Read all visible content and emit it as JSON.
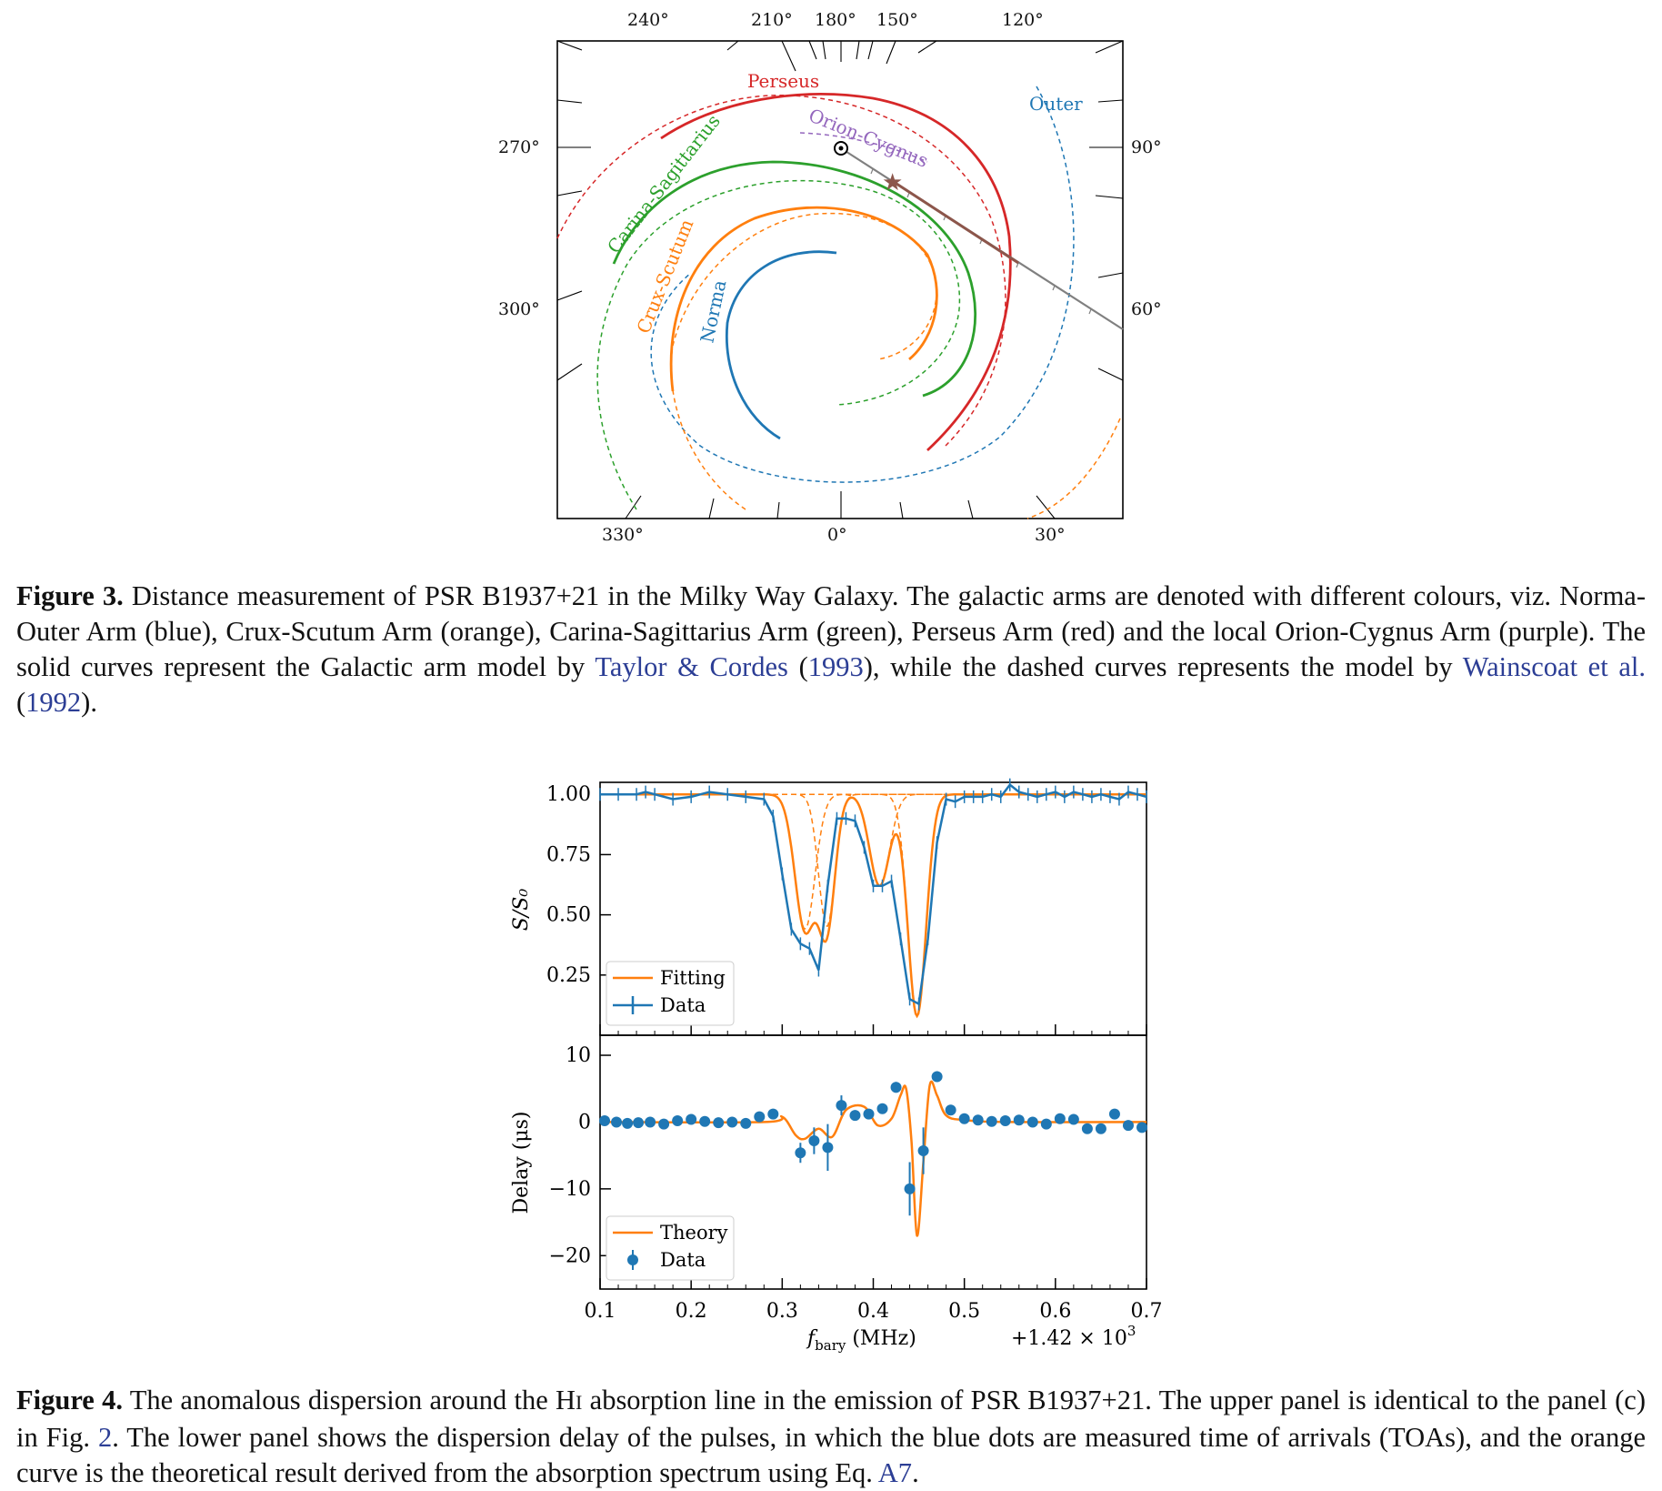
{
  "figure3": {
    "caption_label": "Figure 3.",
    "caption_text_1": " Distance measurement of PSR B1937+21 in the Milky Way Galaxy. The galactic arms are denoted with different colours, viz. Norma-Outer Arm (blue), Crux-Scutum Arm (orange), Carina-Sagittarius Arm (green), Perseus Arm (red) and the local Orion-Cygnus Arm (purple). The solid curves represent the Galactic arm model by ",
    "cite_1_name": "Taylor & Cordes",
    "cite_1_year": "1993",
    "caption_text_2": ", while the dashed curves represents the model by ",
    "cite_2_name": "Wainscoat et al.",
    "cite_2_year": "1992",
    "caption_text_3": ").",
    "top_ticks": [
      "240°",
      "210°",
      "180°",
      "150°",
      "120°"
    ],
    "left_ticks": [
      "270°",
      "300°"
    ],
    "right_ticks": [
      "90°",
      "60°"
    ],
    "bottom_ticks": [
      "330°",
      "0°",
      "30°"
    ],
    "arm_labels": {
      "perseus": "Perseus",
      "outer": "Outer",
      "orion": "Orion-Cygnus",
      "carina": "Carina-Sagittarius",
      "crux": "Crux-Scutum",
      "norma": "Norma"
    },
    "colors": {
      "norma_outer": "#1f77b4",
      "crux_scutum": "#ff7f0e",
      "carina_sagittarius": "#2ca02c",
      "perseus": "#d62728",
      "orion_cygnus": "#9467bd",
      "sightline": "#808080",
      "pulsar_star": "#8c564b"
    }
  },
  "figure4": {
    "caption_label": "Figure 4.",
    "caption_text_1": " The anomalous dispersion around the H",
    "hi_small": "I",
    "caption_text_2": " absorption line in the emission of PSR B1937+21. The upper panel is identical to the panel (c) in Fig. ",
    "fig_ref": "2",
    "caption_text_3": ". The lower panel shows the dispersion delay of the pulses, in which the blue dots are measured time of arrivals (TOAs), and the orange curve is the theoretical result derived from the absorption spectrum using Eq. ",
    "eq_ref": "A7",
    "caption_text_4": ".",
    "upper": {
      "ylabel": "S/S₀",
      "yticks": [
        "1.00",
        "0.75",
        "0.50",
        "0.25"
      ],
      "legend": [
        "Fitting",
        "Data"
      ]
    },
    "lower": {
      "ylabel": "Delay (μs)",
      "yticks": [
        "10",
        "0",
        "−10",
        "−20"
      ],
      "legend": [
        "Theory",
        "Data"
      ]
    },
    "xticks": [
      "0.1",
      "0.2",
      "0.3",
      "0.4",
      "0.5",
      "0.6",
      "0.7"
    ],
    "xlabel_main": "f",
    "xlabel_sub": "bary",
    "xlabel_unit": " (MHz)",
    "offset_text": "+1.42 × 10",
    "offset_exp": "3"
  },
  "chart_data": [
    {
      "type": "line",
      "panel": "upper",
      "xlim": [
        0.1,
        0.7
      ],
      "ylim": [
        0.0,
        1.05
      ],
      "series": [
        {
          "name": "Data",
          "x": [
            0.1,
            0.12,
            0.14,
            0.15,
            0.16,
            0.18,
            0.2,
            0.22,
            0.24,
            0.26,
            0.28,
            0.29,
            0.3,
            0.31,
            0.32,
            0.33,
            0.34,
            0.35,
            0.36,
            0.37,
            0.38,
            0.39,
            0.4,
            0.41,
            0.42,
            0.43,
            0.44,
            0.45,
            0.46,
            0.47,
            0.48,
            0.49,
            0.5,
            0.51,
            0.52,
            0.53,
            0.54,
            0.55,
            0.56,
            0.57,
            0.58,
            0.59,
            0.6,
            0.61,
            0.62,
            0.63,
            0.64,
            0.65,
            0.66,
            0.67,
            0.68,
            0.69,
            0.7
          ],
          "y": [
            1.0,
            1.0,
            1.0,
            1.01,
            1.0,
            0.98,
            0.99,
            1.01,
            1.0,
            0.99,
            0.98,
            0.91,
            0.67,
            0.44,
            0.38,
            0.36,
            0.27,
            0.62,
            0.9,
            0.9,
            0.89,
            0.78,
            0.62,
            0.62,
            0.64,
            0.4,
            0.15,
            0.13,
            0.4,
            0.8,
            0.98,
            0.97,
            0.99,
            0.99,
            0.99,
            1.0,
            0.99,
            1.04,
            1.01,
            1.0,
            0.99,
            1.0,
            1.01,
            0.99,
            1.01,
            1.0,
            0.99,
            1.0,
            0.99,
            0.98,
            1.01,
            1.0,
            0.99
          ]
        },
        {
          "name": "Fitting",
          "components": [
            {
              "center": 0.325,
              "depth": 0.56,
              "sigma": 0.011
            },
            {
              "center": 0.349,
              "depth": 0.55,
              "sigma": 0.009
            },
            {
              "center": 0.407,
              "depth": 0.38,
              "sigma": 0.011
            },
            {
              "center": 0.448,
              "depth": 0.92,
              "sigma": 0.01
            }
          ]
        }
      ]
    },
    {
      "type": "scatter",
      "panel": "lower",
      "xlim": [
        0.1,
        0.7
      ],
      "ylim": [
        -25,
        13
      ],
      "series": [
        {
          "name": "Data",
          "x": [
            0.105,
            0.118,
            0.13,
            0.142,
            0.155,
            0.17,
            0.185,
            0.2,
            0.215,
            0.23,
            0.245,
            0.26,
            0.275,
            0.29,
            0.32,
            0.335,
            0.35,
            0.365,
            0.38,
            0.395,
            0.41,
            0.425,
            0.44,
            0.455,
            0.47,
            0.485,
            0.5,
            0.515,
            0.53,
            0.545,
            0.56,
            0.575,
            0.59,
            0.605,
            0.62,
            0.635,
            0.65,
            0.665,
            0.68,
            0.695
          ],
          "y": [
            0.2,
            0.0,
            -0.2,
            -0.1,
            0.0,
            -0.3,
            0.2,
            0.4,
            0.1,
            -0.1,
            0.0,
            -0.2,
            0.8,
            1.2,
            -4.6,
            -2.8,
            -3.8,
            2.5,
            1.0,
            1.2,
            2.0,
            5.2,
            -10.0,
            -4.3,
            6.8,
            1.8,
            0.5,
            0.3,
            0.1,
            0.2,
            0.3,
            0.0,
            -0.3,
            0.5,
            0.4,
            -1.0,
            -1.0,
            1.2,
            -0.5,
            -0.8
          ],
          "yerr": [
            0.3,
            0.3,
            0.3,
            0.3,
            0.3,
            0.3,
            0.3,
            0.3,
            0.3,
            0.3,
            0.3,
            0.3,
            0.5,
            0.6,
            1.5,
            2.0,
            3.5,
            1.5,
            0.6,
            0.6,
            0.6,
            0.8,
            4.0,
            3.5,
            0.8,
            0.6,
            0.4,
            0.3,
            0.3,
            0.3,
            0.3,
            0.3,
            0.3,
            0.3,
            0.3,
            0.3,
            0.4,
            0.4,
            0.4,
            0.4
          ]
        },
        {
          "name": "Theory",
          "x": [
            0.1,
            0.28,
            0.3,
            0.315,
            0.325,
            0.34,
            0.355,
            0.37,
            0.39,
            0.405,
            0.42,
            0.43,
            0.436,
            0.442,
            0.448,
            0.455,
            0.462,
            0.47,
            0.48,
            0.5,
            0.55,
            0.7
          ],
          "y": [
            0.0,
            0.0,
            0.8,
            -2.0,
            -2.5,
            -1.0,
            -2.2,
            1.8,
            2.3,
            -0.5,
            0.5,
            4.0,
            5.0,
            -3.0,
            -17.0,
            -6.0,
            5.5,
            4.0,
            1.0,
            0.3,
            0.0,
            0.0
          ]
        }
      ]
    }
  ]
}
